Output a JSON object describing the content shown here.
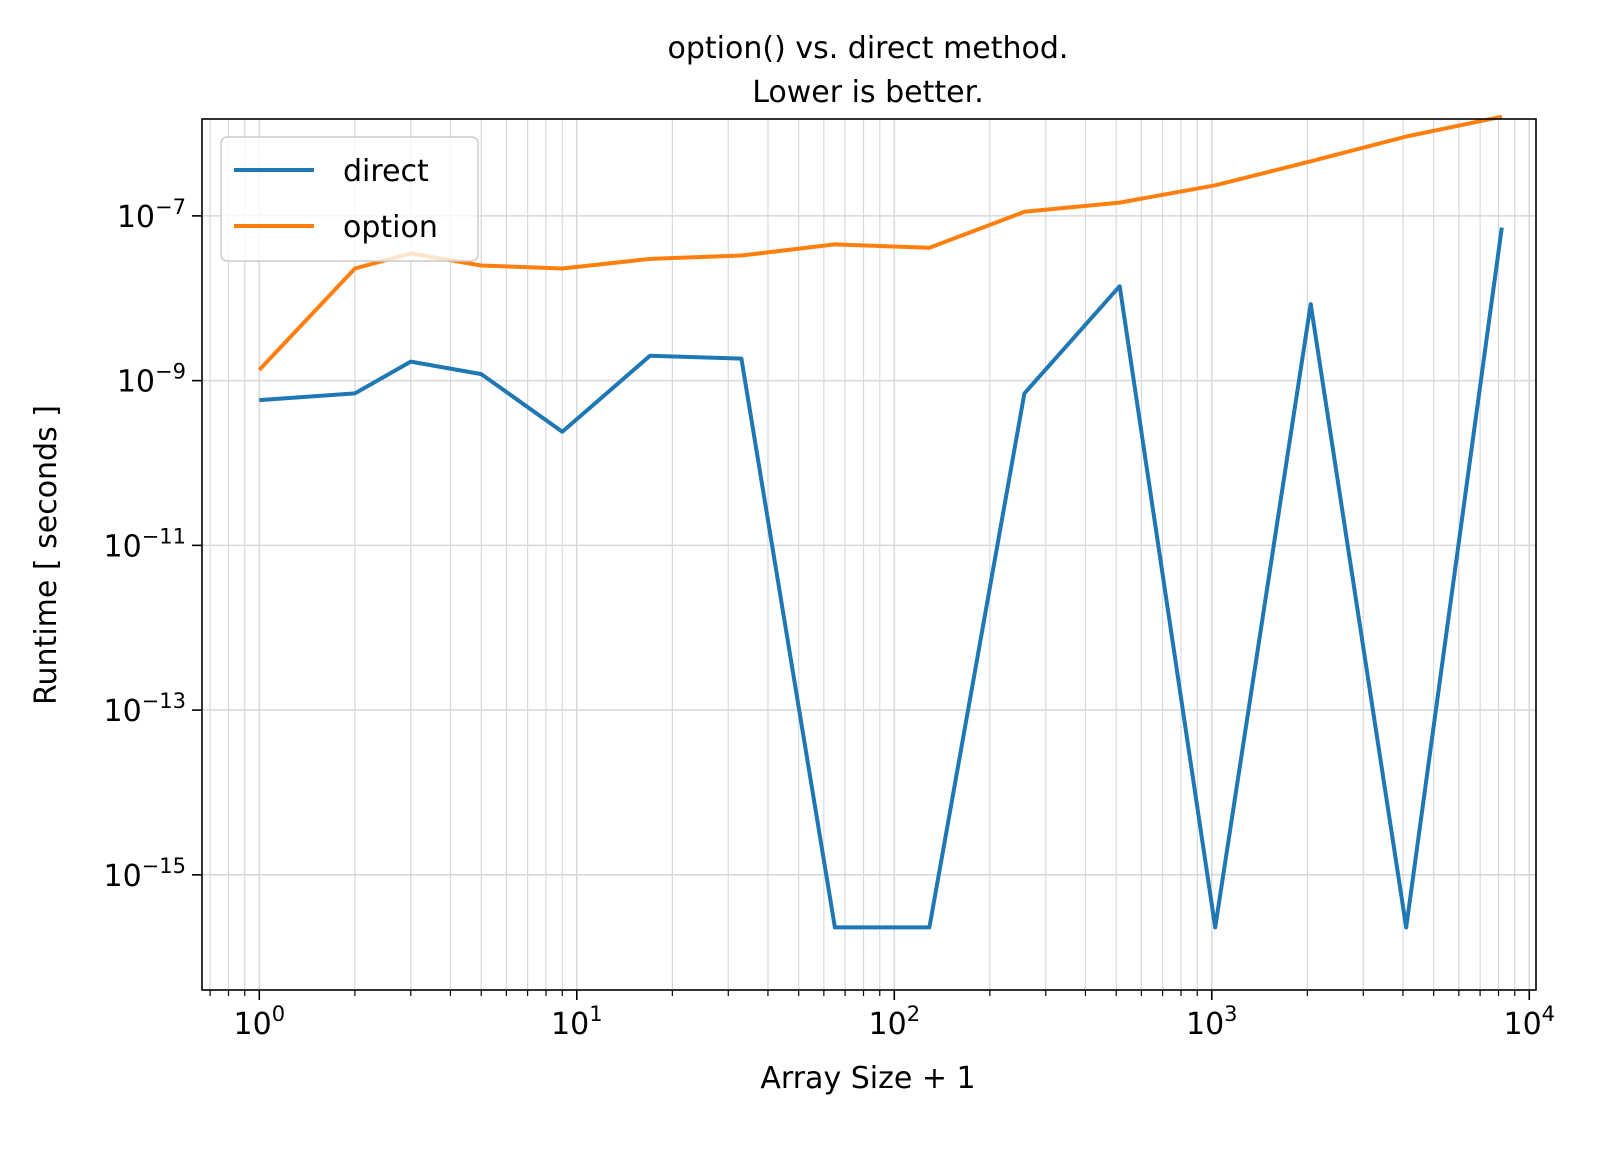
{
  "chart_data": {
    "type": "line",
    "title": [
      "option() vs. direct method.",
      "Lower is better."
    ],
    "xlabel": "Array Size + 1",
    "ylabel": "Runtime [ seconds ]",
    "x_scale": "log",
    "y_scale": "log",
    "xlim": [
      0.66,
      10500
    ],
    "ylim": [
      4e-17,
      1.5e-06
    ],
    "grid": "both-major-and-minor",
    "legend_position": "top-left",
    "x_ticks": [
      {
        "base": "10",
        "exp": "0",
        "value": 1
      },
      {
        "base": "10",
        "exp": "1",
        "value": 10
      },
      {
        "base": "10",
        "exp": "2",
        "value": 100
      },
      {
        "base": "10",
        "exp": "3",
        "value": 1000
      },
      {
        "base": "10",
        "exp": "4",
        "value": 10000
      }
    ],
    "y_ticks": [
      {
        "base": "10",
        "exp": "−7",
        "value": 1e-07
      },
      {
        "base": "10",
        "exp": "−9",
        "value": 1e-09
      },
      {
        "base": "10",
        "exp": "−11",
        "value": 1e-11
      },
      {
        "base": "10",
        "exp": "−13",
        "value": 1e-13
      },
      {
        "base": "10",
        "exp": "−15",
        "value": 1e-15
      }
    ],
    "x": [
      1,
      2,
      3,
      5,
      9,
      17,
      33,
      65,
      129,
      257,
      513,
      1025,
      2049,
      4097,
      8193
    ],
    "series": [
      {
        "name": "direct",
        "color": "#1f77b4",
        "values": [
          5.8e-10,
          7e-10,
          1.7e-09,
          1.2e-09,
          2.4e-10,
          2e-09,
          1.85e-09,
          2.3e-16,
          2.3e-16,
          7e-10,
          1.4e-08,
          2.3e-16,
          8.5e-09,
          2.3e-16,
          7.2e-08
        ]
      },
      {
        "name": "option",
        "color": "#ff7f0e",
        "values": [
          1.35e-09,
          2.3e-08,
          3.5e-08,
          2.5e-08,
          2.3e-08,
          3e-08,
          3.3e-08,
          4.5e-08,
          4.1e-08,
          1.12e-07,
          1.45e-07,
          2.35e-07,
          4.6e-07,
          9.2e-07,
          1.6e-06
        ]
      }
    ]
  }
}
